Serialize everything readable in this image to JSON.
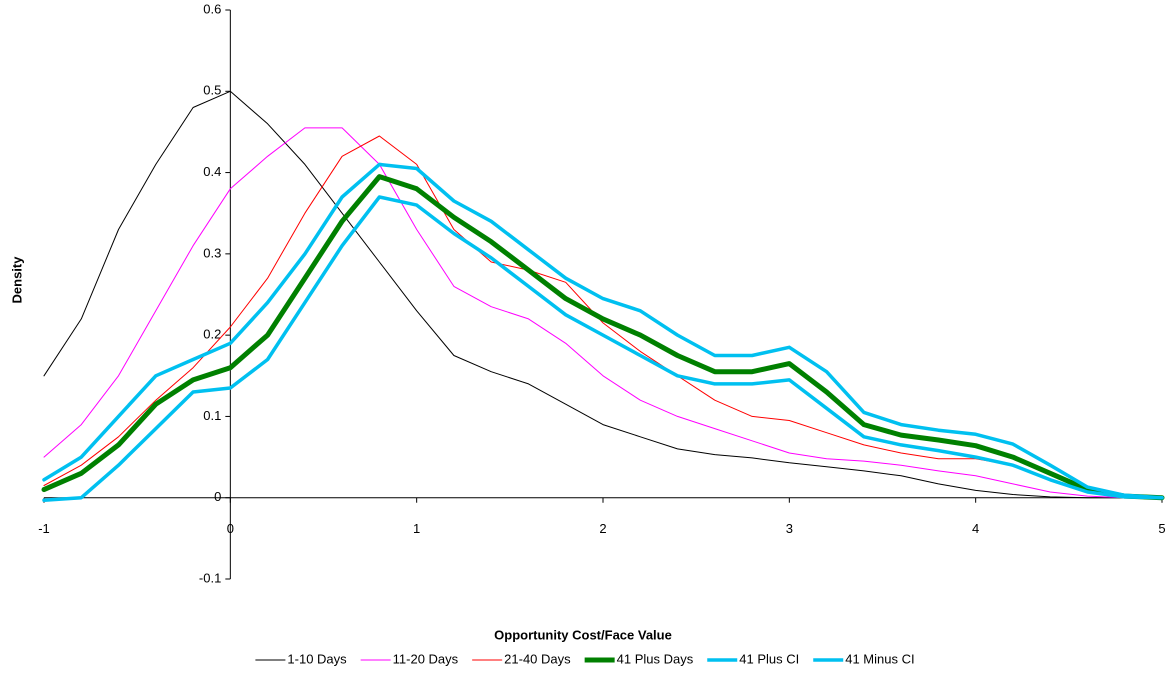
{
  "chart_data": {
    "type": "line",
    "x_label": "Opportunity Cost/Face Value",
    "y_label": "Density",
    "x": [
      -1,
      -0.8,
      -0.6,
      -0.4,
      -0.2,
      0,
      0.2,
      0.4,
      0.6,
      0.8,
      1,
      1.2,
      1.4,
      1.6,
      1.8,
      2,
      2.2,
      2.4,
      2.6,
      2.8,
      3,
      3.2,
      3.4,
      3.6,
      3.8,
      4,
      4.2,
      4.4,
      4.6,
      4.8,
      5
    ],
    "series": [
      {
        "name": "1-10 Days",
        "color": "#000000",
        "width": 1,
        "values": [
          0.15,
          0.22,
          0.33,
          0.41,
          0.48,
          0.5,
          0.46,
          0.41,
          0.35,
          0.29,
          0.23,
          0.175,
          0.155,
          0.14,
          0.115,
          0.09,
          0.075,
          0.06,
          0.053,
          0.049,
          0.043,
          0.038,
          0.033,
          0.027,
          0.017,
          0.009,
          0.004,
          0.001,
          0,
          0,
          0
        ]
      },
      {
        "name": "11-20 Days",
        "color": "#ff00ff",
        "width": 1,
        "values": [
          0.05,
          0.09,
          0.15,
          0.23,
          0.31,
          0.38,
          0.42,
          0.455,
          0.455,
          0.41,
          0.33,
          0.26,
          0.235,
          0.22,
          0.19,
          0.15,
          0.12,
          0.1,
          0.085,
          0.07,
          0.055,
          0.048,
          0.045,
          0.04,
          0.033,
          0.027,
          0.017,
          0.007,
          0.002,
          0,
          0
        ]
      },
      {
        "name": "21-40 Days",
        "color": "#ff0000",
        "width": 1,
        "values": [
          0.015,
          0.04,
          0.075,
          0.12,
          0.16,
          0.21,
          0.27,
          0.35,
          0.42,
          0.445,
          0.41,
          0.33,
          0.29,
          0.28,
          0.265,
          0.215,
          0.18,
          0.15,
          0.12,
          0.1,
          0.095,
          0.08,
          0.065,
          0.055,
          0.048,
          0.048,
          0.04,
          0.022,
          0.008,
          0.002,
          0
        ]
      },
      {
        "name": "41 Plus Days",
        "color": "#008000",
        "width": 5,
        "values": [
          0.01,
          0.03,
          0.065,
          0.115,
          0.145,
          0.16,
          0.2,
          0.27,
          0.34,
          0.395,
          0.38,
          0.345,
          0.315,
          0.28,
          0.245,
          0.22,
          0.2,
          0.175,
          0.155,
          0.155,
          0.165,
          0.13,
          0.09,
          0.077,
          0.071,
          0.064,
          0.05,
          0.03,
          0.01,
          0.002,
          0
        ]
      },
      {
        "name": "41 Plus CI",
        "color": "#00c0f0",
        "width": 3.5,
        "values": [
          0.022,
          0.05,
          0.1,
          0.15,
          0.17,
          0.19,
          0.24,
          0.3,
          0.37,
          0.41,
          0.405,
          0.365,
          0.34,
          0.305,
          0.27,
          0.245,
          0.23,
          0.2,
          0.175,
          0.175,
          0.185,
          0.155,
          0.105,
          0.09,
          0.083,
          0.078,
          0.066,
          0.04,
          0.013,
          0.003,
          0
        ]
      },
      {
        "name": "41 Minus CI",
        "color": "#00c0f0",
        "width": 3.5,
        "values": [
          -0.003,
          0,
          0.04,
          0.085,
          0.13,
          0.135,
          0.17,
          0.24,
          0.31,
          0.37,
          0.36,
          0.325,
          0.295,
          0.26,
          0.225,
          0.2,
          0.175,
          0.15,
          0.14,
          0.14,
          0.145,
          0.11,
          0.075,
          0.065,
          0.058,
          0.05,
          0.04,
          0.022,
          0.007,
          0.001,
          0
        ]
      }
    ],
    "xlim": [
      -1,
      5
    ],
    "ylim": [
      -0.1,
      0.6
    ],
    "xticks": [
      -1,
      0,
      1,
      2,
      3,
      4,
      5
    ],
    "yticks": [
      -0.1,
      0,
      0.1,
      0.2,
      0.3,
      0.4,
      0.5,
      0.6
    ],
    "grid": false,
    "legend": "bottom"
  }
}
